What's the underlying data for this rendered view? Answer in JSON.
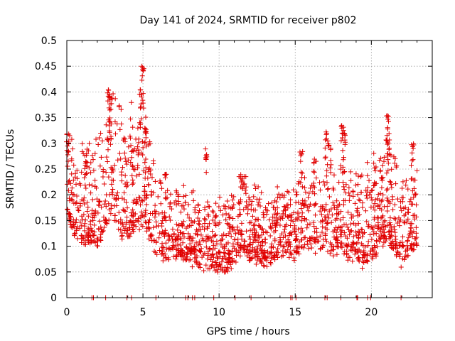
{
  "chart_data": {
    "type": "scatter",
    "title": "Day 141 of 2024, SRMTID for receiver p802",
    "xlabel": "GPS time / hours",
    "ylabel": "SRMTID / TECUs",
    "xlim": [
      0,
      24
    ],
    "ylim": [
      0,
      0.5
    ],
    "grid": true,
    "marker": "+",
    "color": "#e00000",
    "x_ticks": [
      0,
      5,
      10,
      15,
      20
    ],
    "y_ticks": [
      0,
      0.05,
      0.1,
      0.15,
      0.2,
      0.25,
      0.3,
      0.35,
      0.4,
      0.45,
      0.5
    ],
    "x_tick_labels": [
      "0",
      "5",
      "10",
      "15",
      "20"
    ],
    "y_tick_labels": [
      "0",
      "0.05",
      "0.1",
      "0.15",
      "0.2",
      "0.25",
      "0.3",
      "0.35",
      "0.4",
      "0.45",
      "0.5"
    ],
    "trend": [
      [
        0.0,
        0.22
      ],
      [
        0.5,
        0.18
      ],
      [
        1.0,
        0.17
      ],
      [
        1.5,
        0.17
      ],
      [
        2.0,
        0.16
      ],
      [
        2.5,
        0.2
      ],
      [
        3.0,
        0.24
      ],
      [
        3.5,
        0.2
      ],
      [
        4.0,
        0.19
      ],
      [
        4.5,
        0.21
      ],
      [
        5.0,
        0.22
      ],
      [
        5.5,
        0.17
      ],
      [
        6.0,
        0.13
      ],
      [
        6.5,
        0.12
      ],
      [
        7.0,
        0.13
      ],
      [
        7.5,
        0.12
      ],
      [
        8.0,
        0.11
      ],
      [
        8.5,
        0.11
      ],
      [
        9.0,
        0.1
      ],
      [
        9.5,
        0.1
      ],
      [
        10.0,
        0.1
      ],
      [
        10.5,
        0.1
      ],
      [
        11.0,
        0.11
      ],
      [
        11.5,
        0.14
      ],
      [
        12.0,
        0.12
      ],
      [
        12.5,
        0.12
      ],
      [
        13.0,
        0.11
      ],
      [
        13.5,
        0.11
      ],
      [
        14.0,
        0.12
      ],
      [
        14.5,
        0.12
      ],
      [
        15.0,
        0.12
      ],
      [
        15.5,
        0.14
      ],
      [
        16.0,
        0.14
      ],
      [
        16.5,
        0.14
      ],
      [
        17.0,
        0.15
      ],
      [
        17.5,
        0.13
      ],
      [
        18.0,
        0.15
      ],
      [
        18.5,
        0.13
      ],
      [
        19.0,
        0.14
      ],
      [
        19.5,
        0.12
      ],
      [
        20.0,
        0.13
      ],
      [
        20.5,
        0.16
      ],
      [
        21.0,
        0.18
      ],
      [
        21.5,
        0.15
      ],
      [
        22.0,
        0.12
      ],
      [
        22.5,
        0.13
      ],
      [
        23.0,
        0.14
      ]
    ],
    "spread": [
      [
        0.0,
        0.07
      ],
      [
        3.0,
        0.1
      ],
      [
        5.0,
        0.1
      ],
      [
        6.0,
        0.06
      ],
      [
        9.0,
        0.05
      ],
      [
        11.5,
        0.06
      ],
      [
        15.0,
        0.05
      ],
      [
        16.5,
        0.06
      ],
      [
        18.0,
        0.07
      ],
      [
        21.0,
        0.08
      ],
      [
        23.0,
        0.06
      ]
    ],
    "spikes": [
      [
        0.05,
        0.32
      ],
      [
        2.75,
        0.405
      ],
      [
        2.9,
        0.4
      ],
      [
        4.85,
        0.41
      ],
      [
        5.0,
        0.45
      ],
      [
        5.2,
        0.33
      ],
      [
        4.25,
        0.3
      ],
      [
        9.2,
        0.29
      ],
      [
        11.45,
        0.24
      ],
      [
        15.4,
        0.285
      ],
      [
        16.3,
        0.27
      ],
      [
        17.05,
        0.325
      ],
      [
        17.25,
        0.3
      ],
      [
        18.1,
        0.335
      ],
      [
        18.2,
        0.32
      ],
      [
        21.05,
        0.355
      ],
      [
        21.1,
        0.32
      ],
      [
        22.7,
        0.3
      ],
      [
        1.25,
        0.28
      ],
      [
        6.5,
        0.24
      ]
    ],
    "zero_markers": [
      1.65,
      1.75,
      2.55,
      3.95,
      4.25,
      5.85,
      7.8,
      7.95,
      8.25,
      8.4,
      9.65,
      11.05,
      12.1,
      14.7,
      14.8,
      15.05,
      16.95,
      17.1,
      18.0,
      19.05,
      19.1,
      19.75,
      19.95,
      21.95
    ]
  }
}
